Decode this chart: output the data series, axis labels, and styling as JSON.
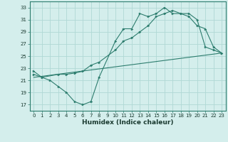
{
  "xlabel": "Humidex (Indice chaleur)",
  "bg_color": "#d4eeec",
  "grid_color": "#b0d8d5",
  "line_color": "#2d7d6e",
  "xlim": [
    -0.5,
    23.5
  ],
  "ylim": [
    16.0,
    34.0
  ],
  "xticks": [
    0,
    1,
    2,
    3,
    4,
    5,
    6,
    7,
    8,
    9,
    10,
    11,
    12,
    13,
    14,
    15,
    16,
    17,
    18,
    19,
    20,
    21,
    22,
    23
  ],
  "yticks": [
    17,
    19,
    21,
    23,
    25,
    27,
    29,
    31,
    33
  ],
  "line1_x": [
    0,
    1,
    2,
    3,
    4,
    5,
    6,
    7,
    8,
    10,
    11,
    12,
    13,
    14,
    15,
    16,
    17,
    18,
    19,
    20,
    21,
    22,
    23
  ],
  "line1_y": [
    22.5,
    21.5,
    21.0,
    20.0,
    19.0,
    17.5,
    17.0,
    17.5,
    21.5,
    27.5,
    29.5,
    29.5,
    32.0,
    31.5,
    32.0,
    33.0,
    32.0,
    32.0,
    31.5,
    30.0,
    29.5,
    26.5,
    25.5
  ],
  "line2_x": [
    0,
    1,
    3,
    4,
    5,
    6,
    7,
    8,
    10,
    11,
    12,
    13,
    14,
    15,
    16,
    17,
    18,
    19,
    20,
    21,
    22,
    23
  ],
  "line2_y": [
    22.0,
    21.5,
    22.0,
    22.0,
    22.2,
    22.5,
    23.5,
    24.0,
    26.0,
    27.5,
    28.0,
    29.0,
    30.0,
    31.5,
    32.0,
    32.5,
    32.0,
    32.0,
    31.0,
    26.5,
    26.0,
    25.5
  ],
  "line3_x": [
    0,
    23
  ],
  "line3_y": [
    21.5,
    25.5
  ]
}
